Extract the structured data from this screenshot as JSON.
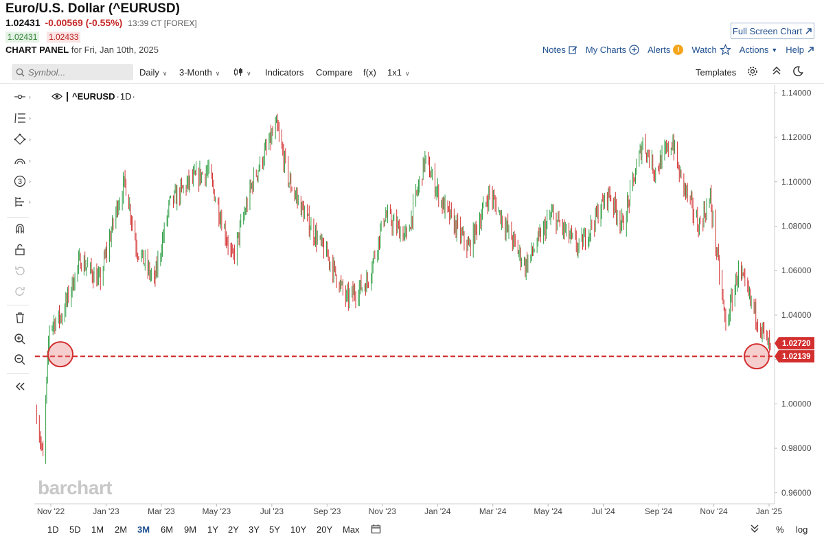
{
  "header": {
    "title": "Euro/U.S. Dollar (^EURUSD)",
    "last": "1.02431",
    "change": "-0.00569 (-0.55%)",
    "time": "13:39 CT [FOREX]",
    "bid": "1.02431",
    "ask": "1.02433",
    "panel_label": "CHART PANEL",
    "panel_date": "for Fri, Jan 10th, 2025"
  },
  "top_links": {
    "full_screen": "Full Screen Chart",
    "notes": "Notes",
    "my_charts": "My Charts",
    "alerts": "Alerts",
    "alerts_badge": "!",
    "watch": "Watch",
    "actions": "Actions",
    "help": "Help"
  },
  "toolbar": {
    "symbol_placeholder": "Symbol...",
    "interval": "Daily",
    "period": "3-Month",
    "indicators": "Indicators",
    "compare": "Compare",
    "fx": "f(x)",
    "layout": "1x1",
    "templates": "Templates"
  },
  "legend": {
    "symbol": "^EURUSD",
    "interval": "1D"
  },
  "watermark": "barchart",
  "ranges": [
    "1D",
    "5D",
    "1M",
    "2M",
    "3M",
    "6M",
    "9M",
    "1Y",
    "2Y",
    "3Y",
    "5Y",
    "10Y",
    "20Y",
    "Max"
  ],
  "active_range": "3M",
  "right_controls": {
    "percent": "%",
    "log": "log"
  },
  "colors": {
    "up": "#2e9e44",
    "down": "#d32f2f",
    "hline": "#d32f2f",
    "accent": "#1f4f8f"
  },
  "chart_data": {
    "type": "candlestick",
    "title": "",
    "x_ticks": [
      "Nov '22",
      "Jan '23",
      "Mar '23",
      "May '23",
      "Jul '23",
      "Sep '23",
      "Nov '23",
      "Jan '24",
      "Mar '24",
      "May '24",
      "Jul '24",
      "Sep '24",
      "Nov '24",
      "Jan '25"
    ],
    "y_ticks": [
      0.96,
      0.98,
      1.0,
      1.02,
      1.04,
      1.06,
      1.08,
      1.1,
      1.12,
      1.14
    ],
    "ylim": [
      0.955,
      1.1435
    ],
    "x_range": [
      "2022-10-27",
      "2025-01-10"
    ],
    "price_labels": [
      {
        "value": "1.02720",
        "color": "#d32f2f"
      },
      {
        "value": "1.02139",
        "color": "#d32f2f"
      }
    ],
    "horizontal_line": 1.02139,
    "series": [
      {
        "name": "^EURUSD",
        "points": [
          [
            "2022-10-28",
            0.996
          ],
          [
            "2022-11-04",
            0.975
          ],
          [
            "2022-11-11",
            1.035
          ],
          [
            "2022-11-25",
            1.04
          ],
          [
            "2022-12-15",
            1.065
          ],
          [
            "2023-01-05",
            1.055
          ],
          [
            "2023-01-25",
            1.09
          ],
          [
            "2023-02-02",
            1.1
          ],
          [
            "2023-02-15",
            1.07
          ],
          [
            "2023-03-06",
            1.055
          ],
          [
            "2023-03-23",
            1.09
          ],
          [
            "2023-04-14",
            1.1
          ],
          [
            "2023-05-04",
            1.105
          ],
          [
            "2023-05-31",
            1.065
          ],
          [
            "2023-06-22",
            1.1
          ],
          [
            "2023-07-18",
            1.125
          ],
          [
            "2023-08-01",
            1.1
          ],
          [
            "2023-08-24",
            1.08
          ],
          [
            "2023-09-14",
            1.065
          ],
          [
            "2023-10-03",
            1.047
          ],
          [
            "2023-10-26",
            1.055
          ],
          [
            "2023-11-14",
            1.085
          ],
          [
            "2023-12-08",
            1.075
          ],
          [
            "2023-12-28",
            1.11
          ],
          [
            "2024-01-16",
            1.09
          ],
          [
            "2024-02-14",
            1.07
          ],
          [
            "2024-03-08",
            1.095
          ],
          [
            "2024-04-16",
            1.062
          ],
          [
            "2024-05-15",
            1.085
          ],
          [
            "2024-06-14",
            1.07
          ],
          [
            "2024-07-17",
            1.095
          ],
          [
            "2024-08-01",
            1.08
          ],
          [
            "2024-08-23",
            1.118
          ],
          [
            "2024-09-05",
            1.105
          ],
          [
            "2024-09-25",
            1.118
          ],
          [
            "2024-10-01",
            1.105
          ],
          [
            "2024-10-23",
            1.08
          ],
          [
            "2024-11-05",
            1.092
          ],
          [
            "2024-11-22",
            1.035
          ],
          [
            "2024-12-06",
            1.06
          ],
          [
            "2024-12-30",
            1.035
          ],
          [
            "2025-01-10",
            1.0243
          ]
        ]
      }
    ],
    "grid": false,
    "legend": "top-left"
  }
}
